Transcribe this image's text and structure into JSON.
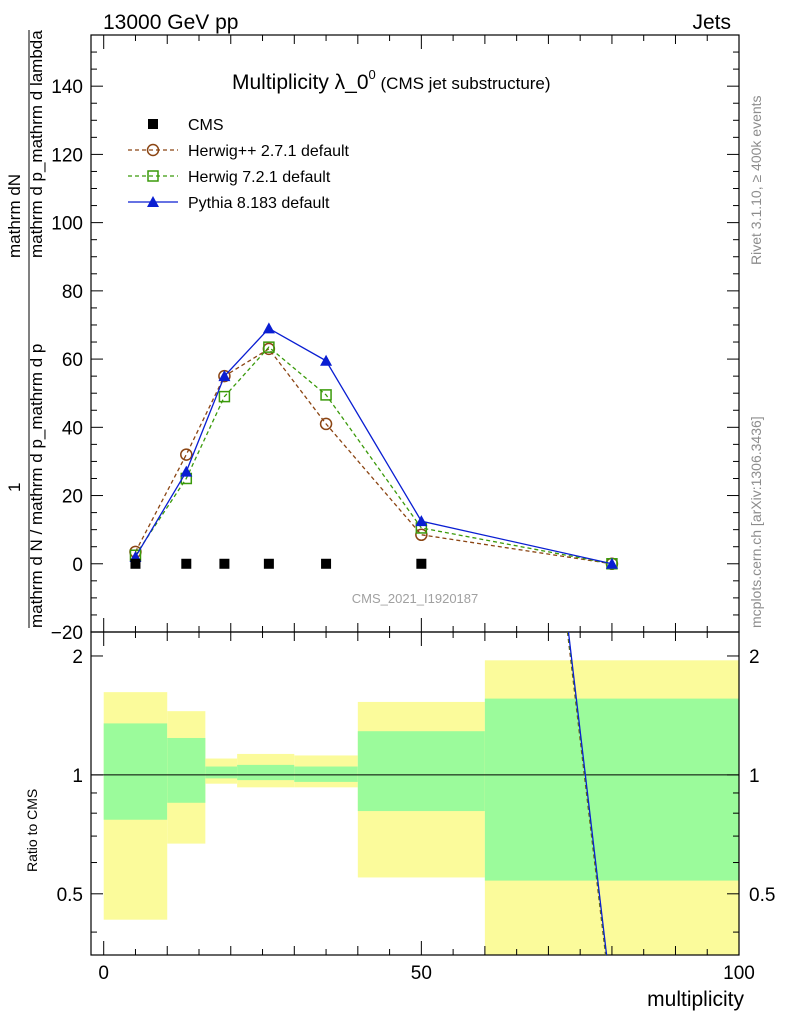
{
  "header": {
    "left": "13000 GeV pp",
    "right": "Jets"
  },
  "side_labels": {
    "rivet": "Rivet 3.1.10, ≥ 400k events",
    "mcplots": "mcplots.cern.ch [arXiv:1306.3436]"
  },
  "title": {
    "main": "Multiplicity λ_0",
    "sup": "0",
    "sub": " (CMS jet substructure)"
  },
  "watermark": "CMS_2021_I1920187",
  "ylabel_main": {
    "top": "mathrm dN",
    "bottom": "mathrm d p_mathrm d lambda",
    "num": "1",
    "den": "mathrm d N / mathrm d p_mathrm d p"
  },
  "ylabel_ratio": "Ratio to CMS",
  "xlabel": "multiplicity",
  "colors": {
    "herwigpp": "#8b4513",
    "herwig7": "#3a9a0a",
    "pythia": "#0a1ed2",
    "band_yellow": "#fbfb9b",
    "band_green": "#9bfb9b"
  },
  "chart_data": {
    "type": "line",
    "x_range": [
      -2,
      100
    ],
    "main_y_range": [
      -20,
      155
    ],
    "main_y_ticks": [
      -20,
      0,
      20,
      40,
      60,
      80,
      100,
      120,
      140
    ],
    "ratio_y_range": [
      0.35,
      2.3
    ],
    "ratio_y_ticks": [
      0.5,
      1,
      2
    ],
    "x_ticks": [
      0,
      50,
      100
    ],
    "legend": [
      "CMS",
      "Herwig++ 2.7.1 default",
      "Herwig 7.2.1 default",
      "Pythia 8.183 default"
    ],
    "cms": {
      "x": [
        5,
        13,
        19,
        26,
        35,
        50
      ],
      "y": [
        0,
        0,
        0,
        0,
        0,
        0
      ]
    },
    "series": [
      {
        "name": "Herwig++ 2.7.1 default",
        "x": [
          5,
          13,
          19,
          26,
          35,
          50,
          80
        ],
        "y": [
          3.5,
          32,
          55,
          63,
          41,
          8.5,
          0
        ]
      },
      {
        "name": "Herwig 7.2.1 default",
        "x": [
          5,
          13,
          19,
          26,
          35,
          50,
          80
        ],
        "y": [
          2.5,
          25,
          49,
          63.5,
          49.5,
          10.5,
          0
        ]
      },
      {
        "name": "Pythia 8.183 default",
        "x": [
          5,
          13,
          19,
          26,
          35,
          50,
          80
        ],
        "y": [
          2,
          27,
          55,
          69,
          59.5,
          12.5,
          0
        ]
      }
    ],
    "ratio_bands": [
      {
        "x0": 0,
        "x1": 10,
        "y_lo": 0.43,
        "y_hi": 1.62,
        "g_lo": 0.77,
        "g_hi": 1.35
      },
      {
        "x0": 10,
        "x1": 16,
        "y_lo": 0.67,
        "y_hi": 1.45,
        "g_lo": 0.85,
        "g_hi": 1.24
      },
      {
        "x0": 16,
        "x1": 21,
        "y_lo": 0.95,
        "y_hi": 1.1,
        "g_lo": 0.98,
        "g_hi": 1.05
      },
      {
        "x0": 21,
        "x1": 30,
        "y_lo": 0.93,
        "y_hi": 1.13,
        "g_lo": 0.97,
        "g_hi": 1.06
      },
      {
        "x0": 30,
        "x1": 40,
        "y_lo": 0.93,
        "y_hi": 1.12,
        "g_lo": 0.96,
        "g_hi": 1.05
      },
      {
        "x0": 40,
        "x1": 60,
        "y_lo": 0.55,
        "y_hi": 1.53,
        "g_lo": 0.81,
        "g_hi": 1.29
      },
      {
        "x0": 60,
        "x1": 100,
        "y_lo": 0.35,
        "y_hi": 1.95,
        "g_lo": 0.54,
        "g_hi": 1.56
      }
    ],
    "ratio_lines": {
      "x": [
        73,
        79
      ],
      "y": [
        2.3,
        0.35
      ]
    }
  }
}
